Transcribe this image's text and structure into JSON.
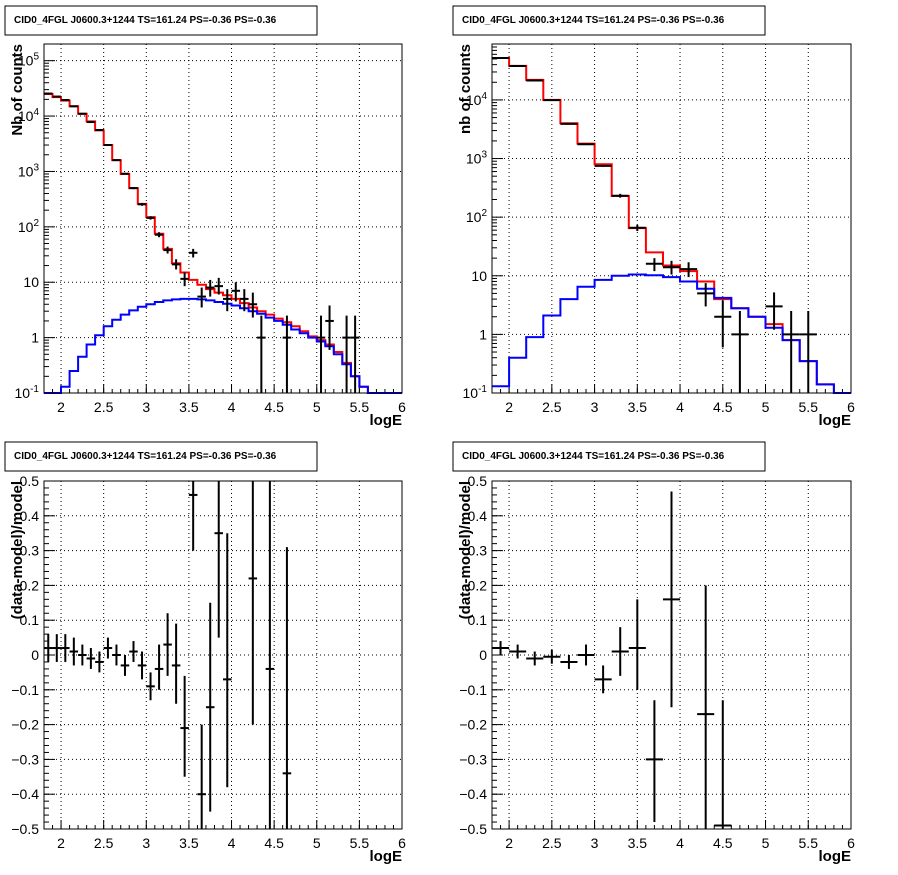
{
  "chart_data": [
    {
      "type": "line",
      "pad_title": "CID0_4FGL J0600.3+1244 TS=161.24 PS=-0.36 PS=-0.36",
      "xlabel": "logE",
      "ylabel": "Nb of counts",
      "xlim": [
        1.8,
        6.0
      ],
      "ylim": [
        0.1,
        200000
      ],
      "yscale": "log",
      "grid": true,
      "x_ticks": [
        "2",
        "2.5",
        "3",
        "3.5",
        "4",
        "4.5",
        "5",
        "5.5",
        "6"
      ],
      "y_ticks": [
        "10^-1",
        "1",
        "10",
        "10^2",
        "10^3",
        "10^4",
        "10^5"
      ],
      "bin_edges": [
        1.8,
        1.9,
        2.0,
        2.1,
        2.2,
        2.3,
        2.4,
        2.5,
        2.6,
        2.7,
        2.8,
        2.9,
        3.0,
        3.1,
        3.2,
        3.3,
        3.4,
        3.5,
        3.6,
        3.7,
        3.8,
        3.9,
        4.0,
        4.1,
        4.2,
        4.3,
        4.4,
        4.5,
        4.6,
        4.7,
        4.8,
        4.9,
        5.0,
        5.1,
        5.2,
        5.3,
        5.4,
        5.5,
        5.6,
        5.7,
        5.8,
        5.9,
        6.0
      ],
      "series": [
        {
          "color": "#ff0000",
          "style": "step",
          "values": [
            25000,
            22000,
            19000,
            15000,
            11000,
            8000,
            5500,
            3000,
            1600,
            900,
            500,
            260,
            150,
            75,
            40,
            22,
            15,
            11,
            9,
            7.5,
            6.5,
            5.8,
            5,
            4.2,
            3.5,
            3,
            2.6,
            2.2,
            1.9,
            1.6,
            1.3,
            1.05,
            0.9,
            0.75,
            0.55,
            0.35,
            0.2,
            0.13,
            0.1,
            0.1,
            0.1,
            0.1
          ]
        },
        {
          "color": "#0000ff",
          "style": "step",
          "values": [
            0.1,
            0.1,
            0.13,
            0.25,
            0.45,
            0.75,
            1.1,
            1.6,
            2.1,
            2.6,
            3.1,
            3.6,
            4,
            4.4,
            4.7,
            4.9,
            5,
            5,
            4.9,
            4.7,
            4.4,
            4.1,
            3.8,
            3.4,
            3,
            2.7,
            2.3,
            2,
            1.7,
            1.4,
            1.2,
            1,
            0.85,
            0.7,
            0.5,
            0.33,
            0.2,
            0.13,
            0.1,
            0.1,
            0.1,
            0.1
          ]
        },
        {
          "color": "#000000",
          "style": "points",
          "points": [
            {
              "x": 1.85,
              "y": 25500,
              "lo": 25000,
              "hi": 26000
            },
            {
              "x": 1.95,
              "y": 22500,
              "lo": 22000,
              "hi": 23000
            },
            {
              "x": 2.05,
              "y": 19500,
              "lo": 19000,
              "hi": 20000
            },
            {
              "x": 2.15,
              "y": 15000,
              "lo": 14700,
              "hi": 15300
            },
            {
              "x": 2.25,
              "y": 11000,
              "lo": 10700,
              "hi": 11300
            },
            {
              "x": 2.35,
              "y": 7800,
              "lo": 7600,
              "hi": 8000
            },
            {
              "x": 2.45,
              "y": 5600,
              "lo": 5450,
              "hi": 5750
            },
            {
              "x": 2.55,
              "y": 3000,
              "lo": 2900,
              "hi": 3100
            },
            {
              "x": 2.65,
              "y": 1600,
              "lo": 1550,
              "hi": 1650
            },
            {
              "x": 2.75,
              "y": 910,
              "lo": 880,
              "hi": 940
            },
            {
              "x": 2.85,
              "y": 500,
              "lo": 480,
              "hi": 520
            },
            {
              "x": 2.95,
              "y": 255,
              "lo": 240,
              "hi": 270
            },
            {
              "x": 3.05,
              "y": 145,
              "lo": 135,
              "hi": 155
            },
            {
              "x": 3.15,
              "y": 72,
              "lo": 65,
              "hi": 80
            },
            {
              "x": 3.25,
              "y": 38,
              "lo": 33,
              "hi": 44
            },
            {
              "x": 3.35,
              "y": 21,
              "lo": 17,
              "hi": 26
            },
            {
              "x": 3.45,
              "y": 11.5,
              "lo": 8.5,
              "hi": 15
            },
            {
              "x": 3.55,
              "y": 34,
              "lo": 28,
              "hi": 40
            },
            {
              "x": 3.65,
              "y": 5.5,
              "lo": 3.5,
              "hi": 8
            },
            {
              "x": 3.75,
              "y": 8,
              "lo": 5.5,
              "hi": 11
            },
            {
              "x": 3.85,
              "y": 8.5,
              "lo": 6,
              "hi": 12
            },
            {
              "x": 3.95,
              "y": 5,
              "lo": 3,
              "hi": 7.5
            },
            {
              "x": 4.05,
              "y": 7,
              "lo": 4.5,
              "hi": 10
            },
            {
              "x": 4.15,
              "y": 5,
              "lo": 3,
              "hi": 7.5
            },
            {
              "x": 4.25,
              "y": 4,
              "lo": 2.3,
              "hi": 6.5
            },
            {
              "x": 4.35,
              "y": 1,
              "lo": 0.1,
              "hi": 2.5
            },
            {
              "x": 4.65,
              "y": 1,
              "lo": 0.1,
              "hi": 2.5
            },
            {
              "x": 5.05,
              "y": 1,
              "lo": 0.1,
              "hi": 2.5
            },
            {
              "x": 5.15,
              "y": 2,
              "lo": 0.6,
              "hi": 3.8
            },
            {
              "x": 5.35,
              "y": 1,
              "lo": 0.1,
              "hi": 2.5
            },
            {
              "x": 5.45,
              "y": 1,
              "lo": 0.1,
              "hi": 2.5
            }
          ]
        }
      ]
    },
    {
      "type": "line",
      "pad_title": "CID0_4FGL J0600.3+1244 TS=161.24 PS=-0.36 PS=-0.36",
      "xlabel": "logE",
      "ylabel": "nb of counts",
      "xlim": [
        1.8,
        6.0
      ],
      "ylim": [
        0.1,
        90000
      ],
      "yscale": "log",
      "grid": true,
      "x_ticks": [
        "2",
        "2.5",
        "3",
        "3.5",
        "4",
        "4.5",
        "5",
        "5.5",
        "6"
      ],
      "y_ticks": [
        "10^-1",
        "1",
        "10",
        "10^2",
        "10^3",
        "10^4"
      ],
      "bin_edges": [
        1.8,
        2.0,
        2.2,
        2.4,
        2.6,
        2.8,
        3.0,
        3.2,
        3.4,
        3.6,
        3.8,
        4.0,
        4.2,
        4.4,
        4.6,
        4.8,
        5.0,
        5.2,
        5.4,
        5.6,
        5.8,
        6.0
      ],
      "series": [
        {
          "color": "#ff0000",
          "style": "step",
          "values": [
            52000,
            38000,
            22000,
            10000,
            4000,
            1800,
            800,
            230,
            65,
            25,
            15,
            12,
            8,
            4,
            2.8,
            2,
            1.5,
            0.8,
            0.35,
            0.14,
            0.1
          ]
        },
        {
          "color": "#0000ff",
          "style": "step",
          "values": [
            0.13,
            0.4,
            0.9,
            2.1,
            4,
            6.5,
            8.5,
            10,
            10.5,
            10.2,
            9.5,
            8,
            6,
            4.2,
            2.8,
            2,
            1.3,
            0.8,
            0.35,
            0.14,
            0.1
          ]
        },
        {
          "color": "#000000",
          "style": "points",
          "points": [
            {
              "x": 1.9,
              "y": 52000,
              "lo": 51000,
              "hi": 53000
            },
            {
              "x": 2.1,
              "y": 38000,
              "lo": 37000,
              "hi": 39000
            },
            {
              "x": 2.3,
              "y": 21500,
              "lo": 21000,
              "hi": 22000
            },
            {
              "x": 2.5,
              "y": 9900,
              "lo": 9700,
              "hi": 10100
            },
            {
              "x": 2.7,
              "y": 3900,
              "lo": 3800,
              "hi": 4000
            },
            {
              "x": 2.9,
              "y": 1750,
              "lo": 1700,
              "hi": 1800
            },
            {
              "x": 3.1,
              "y": 750,
              "lo": 720,
              "hi": 780
            },
            {
              "x": 3.3,
              "y": 232,
              "lo": 215,
              "hi": 250
            },
            {
              "x": 3.5,
              "y": 66,
              "lo": 58,
              "hi": 74
            },
            {
              "x": 3.7,
              "y": 16,
              "lo": 12,
              "hi": 20
            },
            {
              "x": 3.9,
              "y": 14,
              "lo": 10.5,
              "hi": 18
            },
            {
              "x": 4.1,
              "y": 13,
              "lo": 9.5,
              "hi": 17
            },
            {
              "x": 4.3,
              "y": 5,
              "lo": 3,
              "hi": 7.5
            },
            {
              "x": 4.5,
              "y": 2,
              "lo": 0.6,
              "hi": 3.8
            },
            {
              "x": 4.7,
              "y": 1,
              "lo": 0.1,
              "hi": 2.5
            },
            {
              "x": 5.1,
              "y": 3,
              "lo": 1.2,
              "hi": 5.2
            },
            {
              "x": 5.3,
              "y": 1,
              "lo": 0.1,
              "hi": 2.5
            },
            {
              "x": 5.5,
              "y": 1,
              "lo": 0.1,
              "hi": 2.5
            }
          ]
        }
      ]
    },
    {
      "type": "scatter",
      "pad_title": "CID0_4FGL J0600.3+1244 TS=161.24 PS=-0.36 PS=-0.36",
      "xlabel": "logE",
      "ylabel": "(data-model)/model",
      "xlim": [
        1.8,
        6.0
      ],
      "ylim": [
        -0.5,
        0.5
      ],
      "grid": true,
      "x_ticks": [
        "2",
        "2.5",
        "3",
        "3.5",
        "4",
        "4.5",
        "5",
        "5.5",
        "6"
      ],
      "y_ticks": [
        "−0.5",
        "−0.4",
        "−0.3",
        "−0.2",
        "−0.1",
        "0",
        "0.1",
        "0.2",
        "0.3",
        "0.4",
        "0.5"
      ],
      "bin_half_width": 0.05,
      "series": [
        {
          "color": "#000000",
          "style": "points",
          "points": [
            {
              "x": 1.85,
              "y": 0.02,
              "lo": -0.02,
              "hi": 0.06
            },
            {
              "x": 1.95,
              "y": 0.02,
              "lo": -0.02,
              "hi": 0.06
            },
            {
              "x": 2.05,
              "y": 0.02,
              "lo": -0.02,
              "hi": 0.06
            },
            {
              "x": 2.15,
              "y": 0.01,
              "lo": -0.03,
              "hi": 0.05
            },
            {
              "x": 2.25,
              "y": 0.0,
              "lo": -0.03,
              "hi": 0.03
            },
            {
              "x": 2.35,
              "y": -0.01,
              "lo": -0.04,
              "hi": 0.02
            },
            {
              "x": 2.45,
              "y": -0.02,
              "lo": -0.05,
              "hi": 0.01
            },
            {
              "x": 2.55,
              "y": 0.02,
              "lo": -0.01,
              "hi": 0.05
            },
            {
              "x": 2.65,
              "y": 0.0,
              "lo": -0.03,
              "hi": 0.03
            },
            {
              "x": 2.75,
              "y": -0.03,
              "lo": -0.06,
              "hi": 0.0
            },
            {
              "x": 2.85,
              "y": 0.01,
              "lo": -0.02,
              "hi": 0.04
            },
            {
              "x": 2.95,
              "y": -0.03,
              "lo": -0.07,
              "hi": 0.01
            },
            {
              "x": 3.05,
              "y": -0.09,
              "lo": -0.13,
              "hi": -0.05
            },
            {
              "x": 3.15,
              "y": -0.04,
              "lo": -0.1,
              "hi": 0.03
            },
            {
              "x": 3.25,
              "y": 0.03,
              "lo": -0.06,
              "hi": 0.12
            },
            {
              "x": 3.35,
              "y": -0.03,
              "lo": -0.14,
              "hi": 0.09
            },
            {
              "x": 3.45,
              "y": -0.21,
              "lo": -0.35,
              "hi": -0.06
            },
            {
              "x": 3.55,
              "y": 0.46,
              "lo": 0.3,
              "hi": 0.5
            },
            {
              "x": 3.65,
              "y": -0.4,
              "lo": -0.5,
              "hi": -0.2
            },
            {
              "x": 3.75,
              "y": -0.15,
              "lo": -0.45,
              "hi": 0.15
            },
            {
              "x": 3.85,
              "y": 0.35,
              "lo": 0.05,
              "hi": 0.5
            },
            {
              "x": 3.95,
              "y": -0.07,
              "lo": -0.38,
              "hi": 0.35
            },
            {
              "x": 4.25,
              "y": 0.22,
              "lo": -0.2,
              "hi": 0.5
            },
            {
              "x": 4.45,
              "y": -0.04,
              "lo": -0.5,
              "hi": 0.5
            },
            {
              "x": 4.65,
              "y": -0.34,
              "lo": -0.5,
              "hi": 0.31
            }
          ]
        }
      ]
    },
    {
      "type": "scatter",
      "pad_title": "CID0_4FGL J0600.3+1244 TS=161.24 PS=-0.36 PS=-0.36",
      "xlabel": "logE",
      "ylabel": "(data-model)/model",
      "xlim": [
        1.8,
        6.0
      ],
      "ylim": [
        -0.5,
        0.5
      ],
      "grid": true,
      "x_ticks": [
        "2",
        "2.5",
        "3",
        "3.5",
        "4",
        "4.5",
        "5",
        "5.5",
        "6"
      ],
      "y_ticks": [
        "−0.5",
        "−0.4",
        "−0.3",
        "−0.2",
        "−0.1",
        "0",
        "0.1",
        "0.2",
        "0.3",
        "0.4",
        "0.5"
      ],
      "bin_half_width": 0.1,
      "series": [
        {
          "color": "#000000",
          "style": "points",
          "points": [
            {
              "x": 1.9,
              "y": 0.02,
              "lo": 0.0,
              "hi": 0.04
            },
            {
              "x": 2.1,
              "y": 0.01,
              "lo": -0.01,
              "hi": 0.03
            },
            {
              "x": 2.3,
              "y": -0.01,
              "lo": -0.03,
              "hi": 0.01
            },
            {
              "x": 2.5,
              "y": -0.005,
              "lo": -0.025,
              "hi": 0.015
            },
            {
              "x": 2.7,
              "y": -0.02,
              "lo": -0.04,
              "hi": 0.0
            },
            {
              "x": 2.9,
              "y": 0.0,
              "lo": -0.03,
              "hi": 0.03
            },
            {
              "x": 3.1,
              "y": -0.07,
              "lo": -0.11,
              "hi": -0.03
            },
            {
              "x": 3.3,
              "y": 0.01,
              "lo": -0.06,
              "hi": 0.08
            },
            {
              "x": 3.5,
              "y": 0.02,
              "lo": -0.1,
              "hi": 0.16
            },
            {
              "x": 3.7,
              "y": -0.3,
              "lo": -0.48,
              "hi": -0.13
            },
            {
              "x": 3.9,
              "y": 0.16,
              "lo": -0.15,
              "hi": 0.47
            },
            {
              "x": 4.3,
              "y": -0.17,
              "lo": -0.5,
              "hi": 0.2
            },
            {
              "x": 4.5,
              "y": -0.49,
              "lo": -0.5,
              "hi": -0.13
            }
          ]
        }
      ]
    }
  ]
}
